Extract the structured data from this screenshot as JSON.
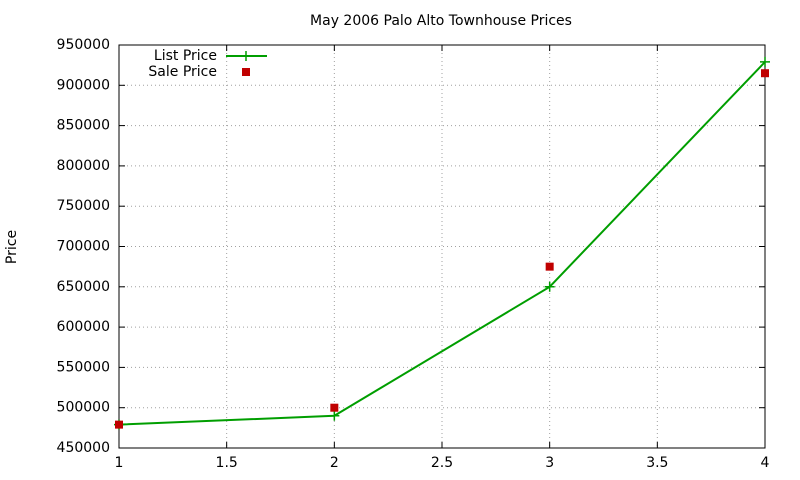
{
  "chart_data": {
    "type": "line",
    "title": "May 2006 Palo Alto Townhouse Prices",
    "y_label": "Price",
    "x": [
      1,
      2,
      3,
      4
    ],
    "series": [
      {
        "name": "List Price",
        "color": "#009e00",
        "mode": "lines+markers",
        "marker": "plus",
        "values": [
          479000,
          490000,
          650000,
          929000
        ]
      },
      {
        "name": "Sale Price",
        "color": "#c00000",
        "mode": "markers",
        "marker": "square",
        "values": [
          479000,
          500000,
          675000,
          915000
        ]
      }
    ],
    "xlim": [
      1,
      4
    ],
    "xticks": [
      1,
      1.5,
      2,
      2.5,
      3,
      3.5,
      4
    ],
    "ylim": [
      450000,
      950000
    ],
    "yticks": [
      450000,
      500000,
      550000,
      600000,
      650000,
      700000,
      750000,
      800000,
      850000,
      900000,
      950000
    ],
    "grid": true,
    "legend": "top-left"
  }
}
